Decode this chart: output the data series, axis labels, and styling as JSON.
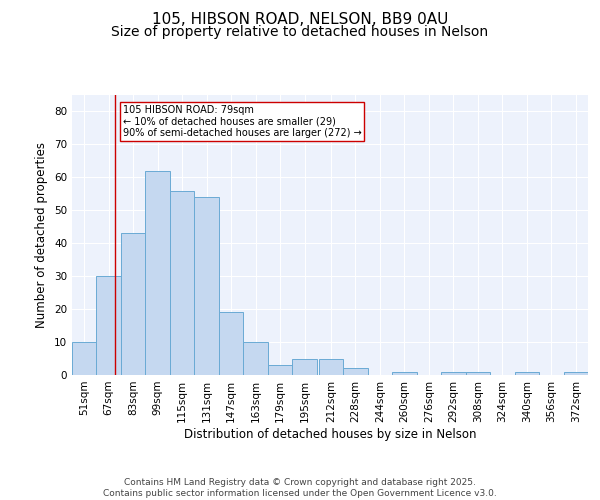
{
  "title1": "105, HIBSON ROAD, NELSON, BB9 0AU",
  "title2": "Size of property relative to detached houses in Nelson",
  "xlabel": "Distribution of detached houses by size in Nelson",
  "ylabel": "Number of detached properties",
  "bin_labels": [
    "51sqm",
    "67sqm",
    "83sqm",
    "99sqm",
    "115sqm",
    "131sqm",
    "147sqm",
    "163sqm",
    "179sqm",
    "195sqm",
    "212sqm",
    "228sqm",
    "244sqm",
    "260sqm",
    "276sqm",
    "292sqm",
    "308sqm",
    "324sqm",
    "340sqm",
    "356sqm",
    "372sqm"
  ],
  "bin_edges": [
    51,
    67,
    83,
    99,
    115,
    131,
    147,
    163,
    179,
    195,
    212,
    228,
    244,
    260,
    276,
    292,
    308,
    324,
    340,
    356,
    372
  ],
  "bar_heights": [
    10,
    30,
    43,
    62,
    56,
    54,
    19,
    10,
    3,
    5,
    5,
    2,
    0,
    1,
    0,
    1,
    1,
    0,
    1,
    0,
    1
  ],
  "bar_color": "#c5d8f0",
  "bar_edge_color": "#6aaad4",
  "ylim": [
    0,
    85
  ],
  "yticks": [
    0,
    10,
    20,
    30,
    40,
    50,
    60,
    70,
    80
  ],
  "vline_x": 79,
  "vline_color": "#cc0000",
  "annotation_text": "105 HIBSON ROAD: 79sqm\n← 10% of detached houses are smaller (29)\n90% of semi-detached houses are larger (272) →",
  "annotation_box_edge": "#cc0000",
  "background_color": "#edf2fc",
  "grid_color": "#ffffff",
  "footer": "Contains HM Land Registry data © Crown copyright and database right 2025.\nContains public sector information licensed under the Open Government Licence v3.0.",
  "title_fontsize": 11,
  "subtitle_fontsize": 10,
  "label_fontsize": 8.5,
  "tick_fontsize": 7.5,
  "ylabel_fontsize": 8.5,
  "footer_fontsize": 6.5
}
